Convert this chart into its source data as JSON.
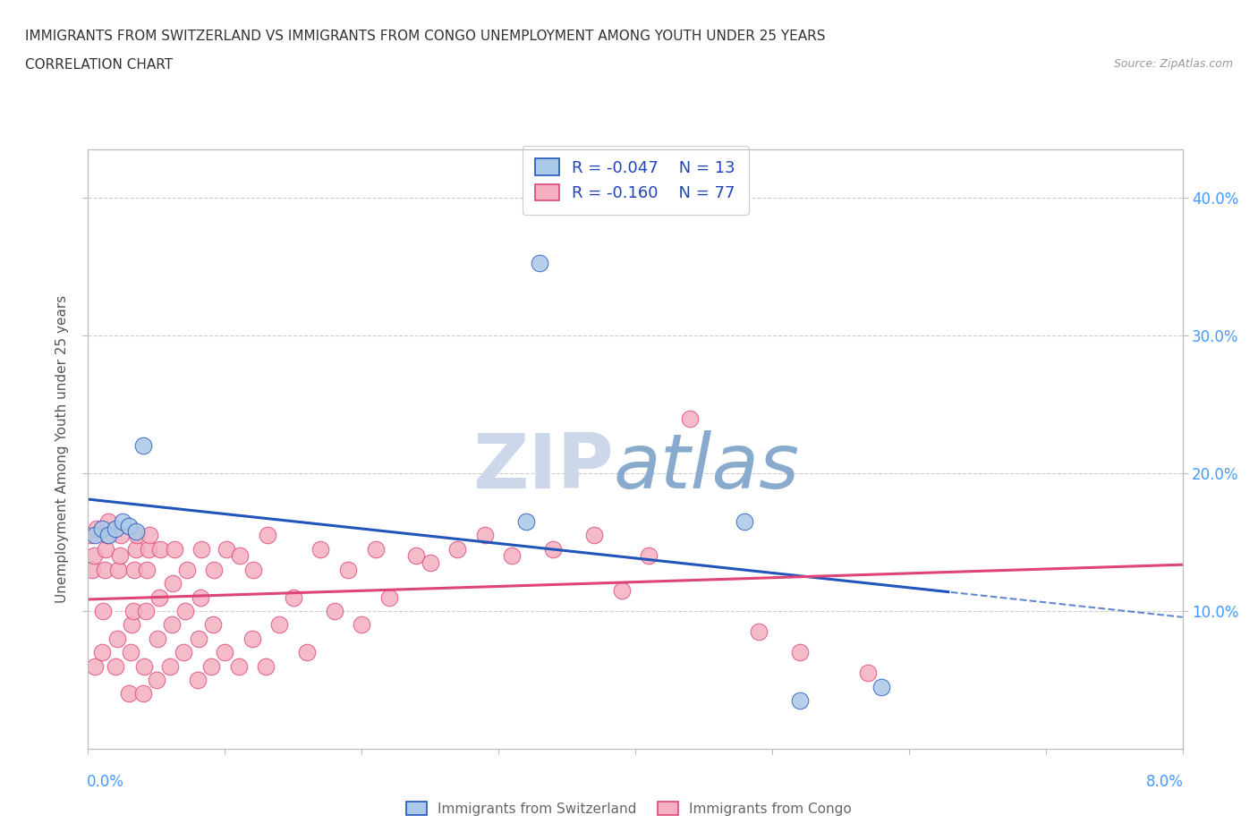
{
  "title_line1": "IMMIGRANTS FROM SWITZERLAND VS IMMIGRANTS FROM CONGO UNEMPLOYMENT AMONG YOUTH UNDER 25 YEARS",
  "title_line2": "CORRELATION CHART",
  "source": "Source: ZipAtlas.com",
  "ylabel": "Unemployment Among Youth under 25 years",
  "y_ticks": [
    0.1,
    0.2,
    0.3,
    0.4
  ],
  "y_right_labels": [
    "10.0%",
    "20.0%",
    "30.0%",
    "40.0%"
  ],
  "xlim": [
    0.0,
    0.08
  ],
  "ylim": [
    0.0,
    0.435
  ],
  "switzerland_R": "-0.047",
  "switzerland_N": "13",
  "congo_R": "-0.160",
  "congo_N": "77",
  "switzerland_color": "#aac8e8",
  "congo_color": "#f5afc0",
  "switzerland_line_color": "#2255bb",
  "congo_line_color": "#dd4477",
  "watermark_zip_color": "#ccd8ea",
  "watermark_atlas_color": "#88aacc",
  "switzerland_x": [
    0.0005,
    0.001,
    0.0015,
    0.002,
    0.0025,
    0.003,
    0.0035,
    0.004,
    0.032,
    0.033,
    0.048,
    0.052,
    0.058
  ],
  "switzerland_y": [
    0.155,
    0.16,
    0.155,
    0.16,
    0.165,
    0.162,
    0.158,
    0.22,
    0.165,
    0.353,
    0.165,
    0.035,
    0.045
  ],
  "congo_x": [
    0.0002,
    0.0003,
    0.0004,
    0.0005,
    0.0006,
    0.001,
    0.0011,
    0.0012,
    0.0013,
    0.0014,
    0.0015,
    0.002,
    0.0021,
    0.0022,
    0.0023,
    0.0024,
    0.003,
    0.0031,
    0.0032,
    0.0033,
    0.0034,
    0.0035,
    0.0036,
    0.004,
    0.0041,
    0.0042,
    0.0043,
    0.0044,
    0.0045,
    0.005,
    0.0051,
    0.0052,
    0.0053,
    0.006,
    0.0061,
    0.0062,
    0.0063,
    0.007,
    0.0071,
    0.0072,
    0.008,
    0.0081,
    0.0082,
    0.0083,
    0.009,
    0.0091,
    0.0092,
    0.01,
    0.0101,
    0.011,
    0.0111,
    0.012,
    0.0121,
    0.013,
    0.0131,
    0.014,
    0.015,
    0.016,
    0.017,
    0.018,
    0.019,
    0.02,
    0.021,
    0.022,
    0.024,
    0.025,
    0.027,
    0.029,
    0.031,
    0.034,
    0.037,
    0.039,
    0.041,
    0.044,
    0.049,
    0.052,
    0.057
  ],
  "congo_y": [
    0.155,
    0.13,
    0.14,
    0.06,
    0.16,
    0.07,
    0.1,
    0.13,
    0.145,
    0.155,
    0.165,
    0.06,
    0.08,
    0.13,
    0.14,
    0.155,
    0.04,
    0.07,
    0.09,
    0.1,
    0.13,
    0.145,
    0.155,
    0.04,
    0.06,
    0.1,
    0.13,
    0.145,
    0.155,
    0.05,
    0.08,
    0.11,
    0.145,
    0.06,
    0.09,
    0.12,
    0.145,
    0.07,
    0.1,
    0.13,
    0.05,
    0.08,
    0.11,
    0.145,
    0.06,
    0.09,
    0.13,
    0.07,
    0.145,
    0.06,
    0.14,
    0.08,
    0.13,
    0.06,
    0.155,
    0.09,
    0.11,
    0.07,
    0.145,
    0.1,
    0.13,
    0.09,
    0.145,
    0.11,
    0.14,
    0.135,
    0.145,
    0.155,
    0.14,
    0.145,
    0.155,
    0.115,
    0.14,
    0.24,
    0.085,
    0.07,
    0.055
  ]
}
